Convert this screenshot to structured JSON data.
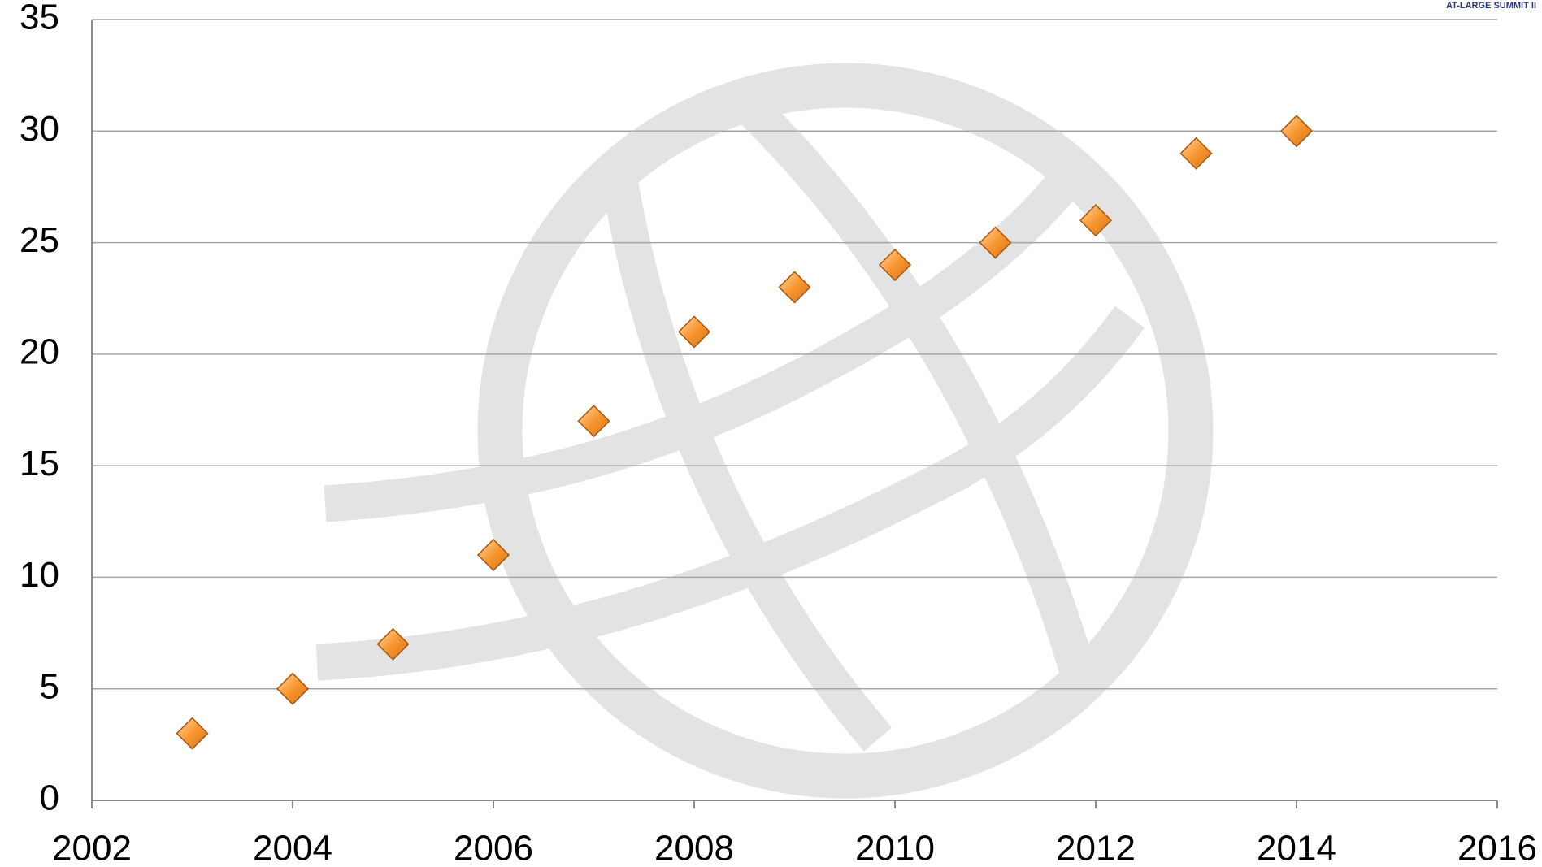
{
  "chart_data": {
    "type": "scatter",
    "logo_text": "AT-LARGE SUMMIT II",
    "x": [
      2003,
      2004,
      2005,
      2006,
      2007,
      2008,
      2009,
      2010,
      2011,
      2012,
      2013,
      2014
    ],
    "values": [
      3,
      5,
      7,
      11,
      17,
      21,
      23,
      24,
      25,
      26,
      29,
      30
    ],
    "color": "#f7962f",
    "xlim": [
      2002,
      2016
    ],
    "xticks": [
      2002,
      2004,
      2006,
      2008,
      2010,
      2012,
      2014,
      2016
    ],
    "ylim": [
      0,
      35
    ],
    "yticks": [
      0,
      5,
      10,
      15,
      20,
      25,
      30,
      35
    ],
    "grid": true
  }
}
